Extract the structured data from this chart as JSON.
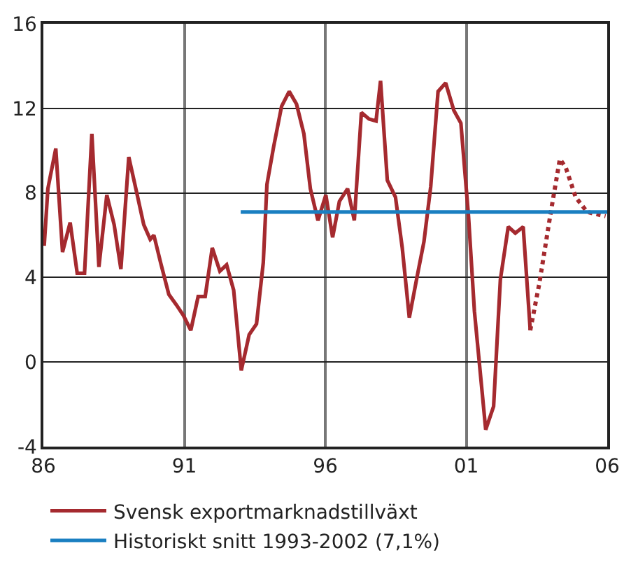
{
  "chart_data": {
    "type": "line",
    "xlim": [
      1986,
      2006
    ],
    "xticks": [
      {
        "value": 1986,
        "label": "86"
      },
      {
        "value": 1991,
        "label": "91"
      },
      {
        "value": 1996,
        "label": "96"
      },
      {
        "value": 2001,
        "label": "01"
      },
      {
        "value": 2006,
        "label": "06"
      }
    ],
    "ylim": [
      -4,
      16
    ],
    "yticks": [
      -4,
      0,
      4,
      8,
      12,
      16
    ],
    "grid": true,
    "legend": "bottom",
    "series": [
      {
        "name": "Svensk exportmarknadstillväxt",
        "color": "#a52a2f",
        "line_style": "solid",
        "x": [
          1986.03,
          1986.16,
          1986.44,
          1986.68,
          1986.95,
          1987.2,
          1987.46,
          1987.72,
          1987.97,
          1988.25,
          1988.51,
          1988.75,
          1989.03,
          1989.28,
          1989.56,
          1989.79,
          1989.92,
          1990.16,
          1990.45,
          1990.72,
          1990.97,
          1991.23,
          1991.49,
          1991.74,
          1991.99,
          1992.26,
          1992.5,
          1992.75,
          1993.02,
          1993.3,
          1993.56,
          1993.8,
          1993.93,
          1994.17,
          1994.45,
          1994.72,
          1994.98,
          1995.24,
          1995.47,
          1995.74,
          1996.02,
          1996.26,
          1996.5,
          1996.79,
          1997.03,
          1997.28,
          1997.55,
          1997.8,
          1997.96,
          1998.2,
          1998.49,
          1998.73,
          1998.98,
          1999.25,
          1999.5,
          1999.74,
          2000.0,
          2000.27,
          2000.56,
          2000.81,
          2001.08,
          2001.29,
          2001.69,
          2001.97,
          2002.21,
          2002.49,
          2002.74,
          2003.02,
          2003.27
        ],
        "values": [
          5.5,
          8.2,
          10.1,
          5.2,
          6.6,
          4.2,
          4.2,
          10.8,
          4.5,
          7.9,
          6.5,
          4.4,
          9.7,
          8.2,
          6.5,
          5.8,
          6.0,
          4.7,
          3.2,
          2.7,
          2.2,
          1.5,
          3.1,
          3.1,
          5.4,
          4.3,
          4.6,
          3.4,
          -0.4,
          1.3,
          1.8,
          4.7,
          8.4,
          10.2,
          12.1,
          12.8,
          12.2,
          10.8,
          8.2,
          6.7,
          7.9,
          5.9,
          7.6,
          8.2,
          6.7,
          11.8,
          11.5,
          11.4,
          13.3,
          8.6,
          7.8,
          5.4,
          2.1,
          4.0,
          5.7,
          8.3,
          12.8,
          13.2,
          11.9,
          11.3,
          6.9,
          2.4,
          -3.2,
          -2.1,
          3.9,
          6.4,
          6.1,
          6.4,
          1.5
        ]
      },
      {
        "color": "#a52a2f",
        "line_style": "dotted",
        "x": [
          2003.27,
          2003.59,
          2004.0,
          2004.32,
          2004.53,
          2004.88,
          2005.29,
          2005.61,
          2005.94
        ],
        "values": [
          1.5,
          3.7,
          7.1,
          9.6,
          9.2,
          7.8,
          7.1,
          7.0,
          6.9
        ]
      },
      {
        "name": "Historiskt snitt 1993-2002 (7,1%)",
        "color": "#1a7fc1",
        "line_style": "solid",
        "x": [
          1993.0,
          2006.0
        ],
        "values": [
          7.1,
          7.1
        ]
      }
    ]
  }
}
